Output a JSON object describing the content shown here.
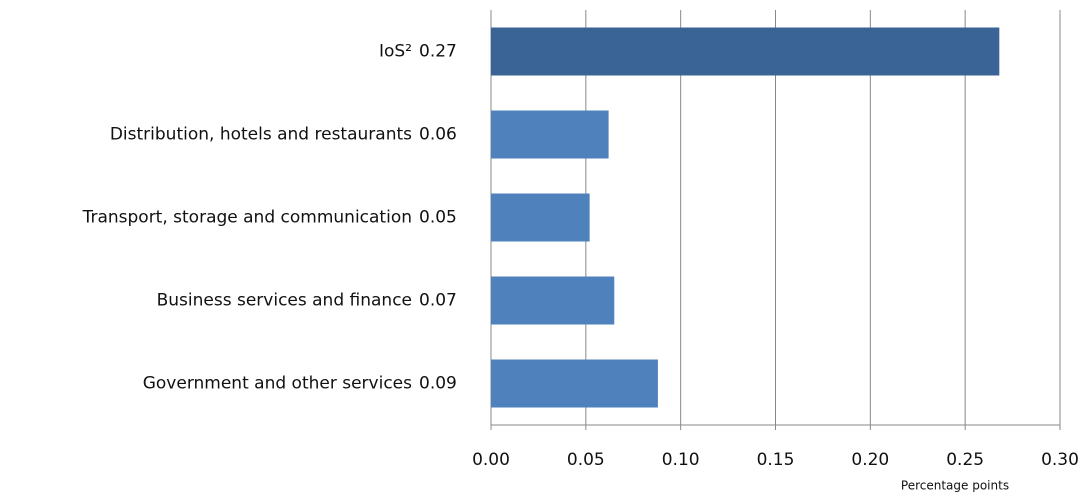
{
  "chart_data": {
    "type": "hbar",
    "categories": [
      "IoS²",
      "Distribution, hotels and restaurants",
      "Transport, storage and communication",
      "Business services and finance",
      "Government and other services"
    ],
    "values": [
      0.268,
      0.062,
      0.052,
      0.065,
      0.088
    ],
    "value_labels": [
      "0.27",
      "0.06",
      "0.05",
      "0.07",
      "0.09"
    ],
    "colors": [
      "#3a6496",
      "#4f81bd",
      "#4f81bd",
      "#4f81bd",
      "#4f81bd"
    ],
    "xlim": [
      0,
      0.3
    ],
    "xticks": [
      {
        "value": 0,
        "label": "0.00"
      },
      0.05,
      {
        "value": 0.1,
        "label": "0.10"
      },
      0.15,
      {
        "value": 0.2,
        "label": "0.20"
      },
      0.25,
      {
        "value": 0.3,
        "label": "0.30"
      }
    ],
    "x_label": "Percentage points",
    "grid": true
  }
}
